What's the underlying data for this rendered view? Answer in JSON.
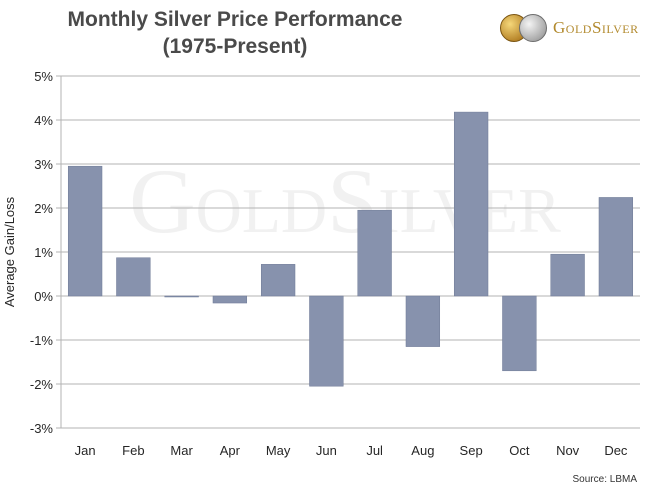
{
  "title": {
    "line1": "Monthly Silver Price Performance",
    "line2": "(1975-Present)"
  },
  "logo": {
    "text": "GoldSilver",
    "watermark_text": "GoldSilver"
  },
  "source": "Source: LBMA",
  "colors": {
    "bar": "#8792ad",
    "bar_border": "#6f7a96",
    "grid": "#b3b3b3",
    "text": "#262626"
  },
  "chart_data": {
    "type": "bar",
    "title": "Monthly Silver Price Performance (1975-Present)",
    "xlabel": "",
    "ylabel": "Average Gain/Loss",
    "categories": [
      "Jan",
      "Feb",
      "Mar",
      "Apr",
      "May",
      "Jun",
      "Jul",
      "Aug",
      "Sep",
      "Oct",
      "Nov",
      "Dec"
    ],
    "values": [
      2.95,
      0.87,
      -0.02,
      -0.16,
      0.72,
      -2.05,
      1.95,
      -1.15,
      4.18,
      -1.7,
      0.95,
      2.24
    ],
    "ylim": [
      -3,
      5
    ],
    "yticks": [
      5,
      4,
      3,
      2,
      1,
      0,
      -1,
      -2,
      -3
    ],
    "ytick_labels": [
      "5%",
      "4%",
      "3%",
      "2%",
      "1%",
      "0%",
      "-1%",
      "-2%",
      "-3%"
    ],
    "grid": true,
    "legend": "none"
  }
}
